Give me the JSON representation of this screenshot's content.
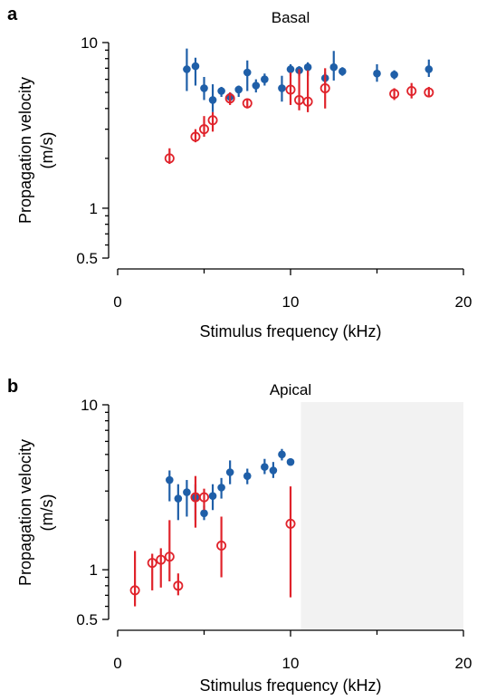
{
  "chart_data": [
    {
      "type": "scatter",
      "panel_letter": "a",
      "title": "Basal",
      "xlabel": "Stimulus frequency (kHz)",
      "ylabel_lines": [
        "Propagation velocity",
        "(m/s)"
      ],
      "y_scale": "log",
      "xlim": [
        0,
        20
      ],
      "ylim": [
        0.5,
        10
      ],
      "x_ticks": [
        0,
        10,
        20
      ],
      "x_minor_ticks": [
        5,
        15
      ],
      "y_ticks": [
        0.5,
        1,
        10
      ],
      "y_tick_labels": [
        "0.5",
        "1",
        "10"
      ],
      "shaded_region": null,
      "series": [
        {
          "marker": "filled-circle",
          "color": "#1f5fa8",
          "points": [
            {
              "x": 4.0,
              "y": 6.9,
              "lo": 5.1,
              "hi": 9.2
            },
            {
              "x": 4.5,
              "y": 7.2,
              "lo": 5.5,
              "hi": 8.1
            },
            {
              "x": 5.0,
              "y": 5.3,
              "lo": 4.5,
              "hi": 6.2
            },
            {
              "x": 5.5,
              "y": 4.5,
              "lo": 3.8,
              "hi": 5.6
            },
            {
              "x": 6.0,
              "y": 5.1,
              "lo": 4.7,
              "hi": 5.4
            },
            {
              "x": 6.5,
              "y": 4.7,
              "lo": 4.3,
              "hi": 5.0
            },
            {
              "x": 7.0,
              "y": 5.2,
              "lo": 4.7,
              "hi": 5.5
            },
            {
              "x": 7.5,
              "y": 6.6,
              "lo": 5.1,
              "hi": 7.8
            },
            {
              "x": 8.0,
              "y": 5.5,
              "lo": 5.0,
              "hi": 6.0
            },
            {
              "x": 8.5,
              "y": 6.0,
              "lo": 5.5,
              "hi": 6.5
            },
            {
              "x": 9.5,
              "y": 5.3,
              "lo": 4.4,
              "hi": 6.3
            },
            {
              "x": 10.0,
              "y": 6.9,
              "lo": 6.3,
              "hi": 7.4
            },
            {
              "x": 10.5,
              "y": 6.8,
              "lo": 6.3,
              "hi": 7.2
            },
            {
              "x": 11.0,
              "y": 7.1,
              "lo": 6.3,
              "hi": 7.6
            },
            {
              "x": 12.0,
              "y": 6.1,
              "lo": 5.5,
              "hi": 6.6
            },
            {
              "x": 12.5,
              "y": 7.1,
              "lo": 5.9,
              "hi": 8.9
            },
            {
              "x": 13.0,
              "y": 6.7,
              "lo": 6.3,
              "hi": 7.1
            },
            {
              "x": 15.0,
              "y": 6.5,
              "lo": 5.8,
              "hi": 7.4
            },
            {
              "x": 16.0,
              "y": 6.4,
              "lo": 6.0,
              "hi": 6.8
            },
            {
              "x": 18.0,
              "y": 6.9,
              "lo": 6.2,
              "hi": 7.9
            }
          ]
        },
        {
          "marker": "open-circle",
          "color": "#e0232b",
          "points": [
            {
              "x": 3.0,
              "y": 2.0,
              "lo": 1.85,
              "hi": 2.3
            },
            {
              "x": 4.5,
              "y": 2.7,
              "lo": 2.5,
              "hi": 3.0
            },
            {
              "x": 5.0,
              "y": 3.0,
              "lo": 2.7,
              "hi": 3.6
            },
            {
              "x": 5.5,
              "y": 3.4,
              "lo": 2.9,
              "hi": 3.8
            },
            {
              "x": 6.5,
              "y": 4.6,
              "lo": 4.2,
              "hi": 5.0
            },
            {
              "x": 7.5,
              "y": 4.3,
              "lo": 4.0,
              "hi": 4.6
            },
            {
              "x": 10.0,
              "y": 5.2,
              "lo": 4.2,
              "hi": 6.6
            },
            {
              "x": 10.5,
              "y": 4.5,
              "lo": 3.9,
              "hi": 6.9
            },
            {
              "x": 11.0,
              "y": 4.4,
              "lo": 3.8,
              "hi": 6.8
            },
            {
              "x": 12.0,
              "y": 5.3,
              "lo": 4.0,
              "hi": 7.0
            },
            {
              "x": 16.0,
              "y": 4.9,
              "lo": 4.5,
              "hi": 5.3
            },
            {
              "x": 17.0,
              "y": 5.1,
              "lo": 4.6,
              "hi": 5.7
            },
            {
              "x": 18.0,
              "y": 5.0,
              "lo": 4.7,
              "hi": 5.4
            }
          ]
        }
      ]
    },
    {
      "type": "scatter",
      "panel_letter": "b",
      "title": "Apical",
      "xlabel": "Stimulus frequency (kHz)",
      "ylabel_lines": [
        "Propagation velocity",
        "(m/s)"
      ],
      "y_scale": "log",
      "xlim": [
        0,
        20
      ],
      "ylim": [
        0.5,
        10
      ],
      "x_ticks": [
        0,
        10,
        20
      ],
      "x_minor_ticks": [
        5,
        15
      ],
      "y_ticks": [
        0.5,
        1,
        10
      ],
      "y_tick_labels": [
        "0.5",
        "1",
        "10"
      ],
      "shaded_region": {
        "x0": 10.6,
        "x1": 20,
        "color": "#f2f2f2"
      },
      "series": [
        {
          "marker": "filled-circle",
          "color": "#1f5fa8",
          "points": [
            {
              "x": 3.0,
              "y": 3.5,
              "lo": 2.6,
              "hi": 4.0
            },
            {
              "x": 3.5,
              "y": 2.7,
              "lo": 2.0,
              "hi": 3.3
            },
            {
              "x": 4.0,
              "y": 2.95,
              "lo": 2.1,
              "hi": 3.5
            },
            {
              "x": 4.5,
              "y": 2.75,
              "lo": 2.0,
              "hi": 3.3
            },
            {
              "x": 5.0,
              "y": 2.2,
              "lo": 2.0,
              "hi": 2.45
            },
            {
              "x": 5.5,
              "y": 2.8,
              "lo": 2.3,
              "hi": 3.3
            },
            {
              "x": 6.0,
              "y": 3.15,
              "lo": 2.7,
              "hi": 3.6
            },
            {
              "x": 6.5,
              "y": 3.9,
              "lo": 3.3,
              "hi": 4.6
            },
            {
              "x": 7.5,
              "y": 3.7,
              "lo": 3.3,
              "hi": 4.1
            },
            {
              "x": 8.5,
              "y": 4.2,
              "lo": 3.8,
              "hi": 4.7
            },
            {
              "x": 9.0,
              "y": 4.0,
              "lo": 3.6,
              "hi": 4.5
            },
            {
              "x": 9.5,
              "y": 5.0,
              "lo": 4.6,
              "hi": 5.4
            },
            {
              "x": 10.0,
              "y": 4.5,
              "lo": 4.3,
              "hi": 4.7
            }
          ]
        },
        {
          "marker": "open-circle",
          "color": "#e0232b",
          "points": [
            {
              "x": 1.0,
              "y": 0.75,
              "lo": 0.6,
              "hi": 1.3
            },
            {
              "x": 2.0,
              "y": 1.1,
              "lo": 0.75,
              "hi": 1.25
            },
            {
              "x": 2.5,
              "y": 1.15,
              "lo": 0.78,
              "hi": 1.35
            },
            {
              "x": 3.0,
              "y": 1.2,
              "lo": 0.85,
              "hi": 2.0
            },
            {
              "x": 3.5,
              "y": 0.8,
              "lo": 0.7,
              "hi": 0.95
            },
            {
              "x": 4.5,
              "y": 2.75,
              "lo": 1.8,
              "hi": 3.7
            },
            {
              "x": 5.0,
              "y": 2.75,
              "lo": 2.3,
              "hi": 3.1
            },
            {
              "x": 6.0,
              "y": 1.4,
              "lo": 0.9,
              "hi": 2.1
            },
            {
              "x": 10.0,
              "y": 1.9,
              "lo": 0.68,
              "hi": 3.2
            }
          ]
        }
      ]
    }
  ]
}
